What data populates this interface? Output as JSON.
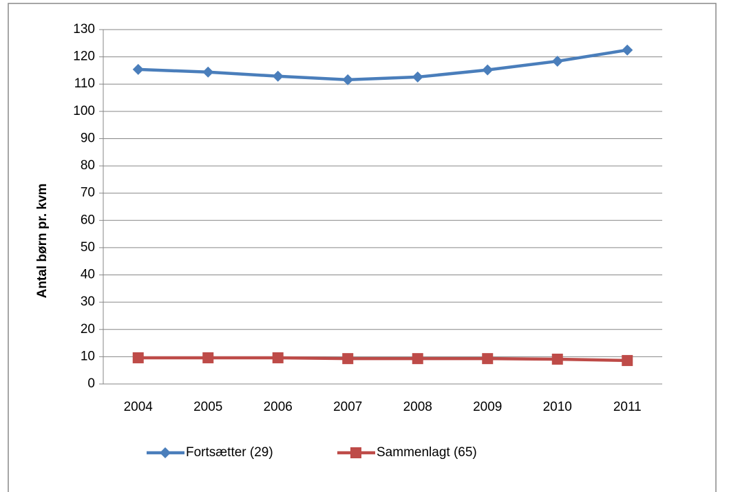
{
  "chart_data": {
    "type": "line",
    "y_label": "Antal børn pr. kvm",
    "categories": [
      "2004",
      "2005",
      "2006",
      "2007",
      "2008",
      "2009",
      "2010",
      "2011"
    ],
    "series": [
      {
        "name": "Fortsætter (29)",
        "color": "#4a7ebb",
        "marker": "diamond",
        "values": [
          115.4,
          114.4,
          112.9,
          111.6,
          112.6,
          115.2,
          118.4,
          122.5
        ]
      },
      {
        "name": "Sammenlagt (65)",
        "color": "#be4b48",
        "marker": "square",
        "values": [
          9.6,
          9.6,
          9.6,
          9.3,
          9.3,
          9.3,
          9.1,
          8.6
        ]
      }
    ],
    "ylim": [
      0,
      130
    ],
    "yticks": [
      0,
      10,
      20,
      30,
      40,
      50,
      60,
      70,
      80,
      90,
      100,
      110,
      120,
      130
    ],
    "grid": true,
    "legend": "bottom"
  }
}
